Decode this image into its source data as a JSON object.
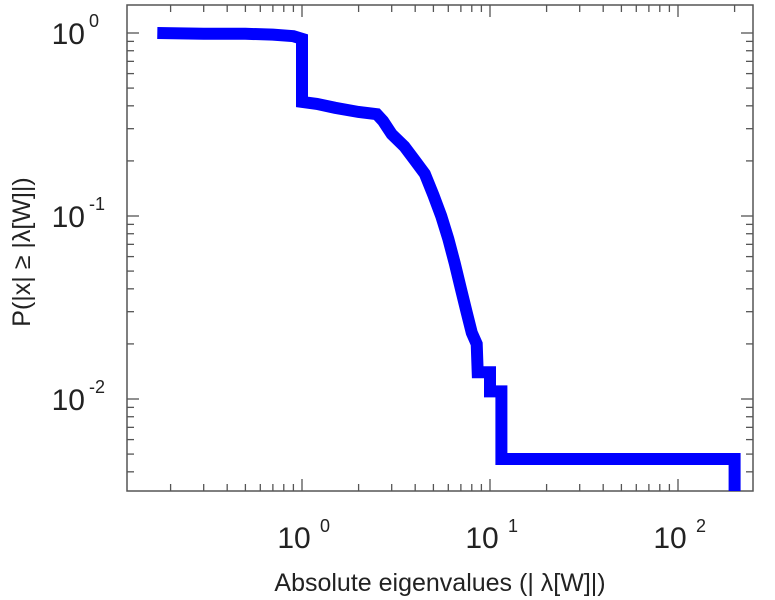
{
  "chart_data": {
    "type": "line",
    "step": true,
    "xscale": "log",
    "yscale": "log",
    "xlim": [
      0.1,
      300
    ],
    "ylim": [
      0.003,
      1.5
    ],
    "xlabel": "Absolute eigenvalues (|     λ[W]|)",
    "ylabel": "P(|x|  ≥ |λ[W]|)",
    "grid": false,
    "legend": "none",
    "line_color": "#0000ff",
    "xticks": [
      {
        "value": 1,
        "base": "10",
        "exp": "0"
      },
      {
        "value": 10,
        "base": "10",
        "exp": "1"
      },
      {
        "value": 100,
        "base": "10",
        "exp": "2"
      }
    ],
    "yticks": [
      {
        "value": 1,
        "base": "10",
        "exp": "0"
      },
      {
        "value": 0.1,
        "base": "10",
        "exp": "-1"
      },
      {
        "value": 0.01,
        "base": "10",
        "exp": "-2"
      }
    ],
    "series": [
      {
        "x": [
          0.17,
          0.3,
          0.5,
          0.7,
          0.9,
          1.0,
          1.0,
          1.2,
          1.5,
          2.0,
          2.5,
          2.7,
          3.0,
          3.5,
          4.0,
          4.5,
          5.0,
          5.5,
          6.0,
          6.5,
          7.0,
          7.5,
          8.0,
          8.5,
          8.6,
          10.0,
          10.0,
          11.5,
          11.5,
          200,
          200
        ],
        "y": [
          1.0,
          0.99,
          0.99,
          0.98,
          0.96,
          0.93,
          0.42,
          0.41,
          0.39,
          0.37,
          0.36,
          0.33,
          0.28,
          0.24,
          0.2,
          0.17,
          0.13,
          0.1,
          0.075,
          0.055,
          0.04,
          0.03,
          0.023,
          0.02,
          0.014,
          0.014,
          0.011,
          0.011,
          0.0047,
          0.0047,
          0.003
        ]
      }
    ]
  }
}
